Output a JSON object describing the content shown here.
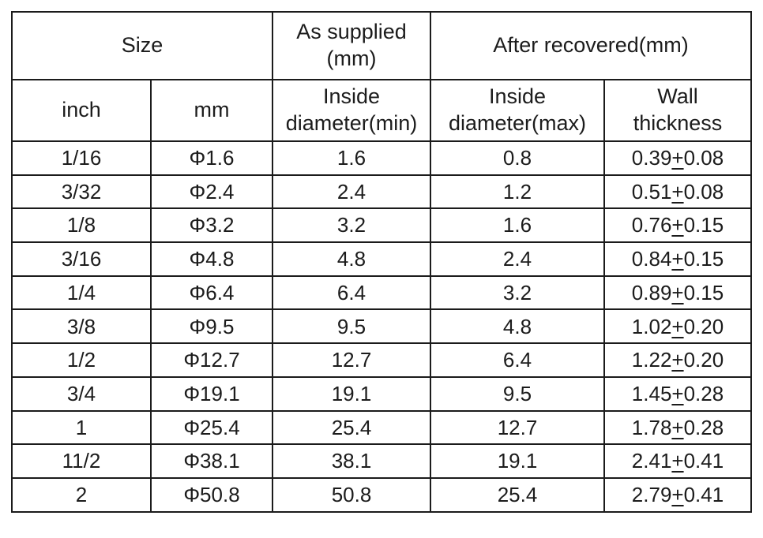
{
  "table": {
    "header_row1": {
      "size": "Size",
      "as_supplied": "As supplied\n(mm)",
      "after_recovered": "After recovered(mm)"
    },
    "header_row2": {
      "inch": "inch",
      "mm": "mm",
      "inside_diameter_min": "Inside\ndiameter(min)",
      "inside_diameter_max": "Inside\ndiameter(max)",
      "wall_thickness": "Wall\nthickness"
    },
    "tolerance_symbol": "+",
    "rows": [
      {
        "inch": "1/16",
        "mm": "Φ1.6",
        "inside_diameter_min": "1.6",
        "inside_diameter_max": "0.8",
        "wall_base": "0.39",
        "wall_tol": "0.08"
      },
      {
        "inch": "3/32",
        "mm": "Φ2.4",
        "inside_diameter_min": "2.4",
        "inside_diameter_max": "1.2",
        "wall_base": "0.51",
        "wall_tol": "0.08"
      },
      {
        "inch": "1/8",
        "mm": "Φ3.2",
        "inside_diameter_min": "3.2",
        "inside_diameter_max": "1.6",
        "wall_base": "0.76",
        "wall_tol": "0.15"
      },
      {
        "inch": "3/16",
        "mm": "Φ4.8",
        "inside_diameter_min": "4.8",
        "inside_diameter_max": "2.4",
        "wall_base": "0.84",
        "wall_tol": "0.15"
      },
      {
        "inch": "1/4",
        "mm": "Φ6.4",
        "inside_diameter_min": "6.4",
        "inside_diameter_max": "3.2",
        "wall_base": "0.89",
        "wall_tol": "0.15"
      },
      {
        "inch": "3/8",
        "mm": "Φ9.5",
        "inside_diameter_min": "9.5",
        "inside_diameter_max": "4.8",
        "wall_base": "1.02",
        "wall_tol": "0.20"
      },
      {
        "inch": "1/2",
        "mm": "Φ12.7",
        "inside_diameter_min": "12.7",
        "inside_diameter_max": "6.4",
        "wall_base": "1.22",
        "wall_tol": "0.20"
      },
      {
        "inch": "3/4",
        "mm": "Φ19.1",
        "inside_diameter_min": "19.1",
        "inside_diameter_max": "9.5",
        "wall_base": "1.45",
        "wall_tol": "0.28"
      },
      {
        "inch": "1",
        "mm": "Φ25.4",
        "inside_diameter_min": "25.4",
        "inside_diameter_max": "12.7",
        "wall_base": "1.78",
        "wall_tol": "0.28"
      },
      {
        "inch": "11/2",
        "mm": "Φ38.1",
        "inside_diameter_min": "38.1",
        "inside_diameter_max": "19.1",
        "wall_base": "2.41",
        "wall_tol": "0.41"
      },
      {
        "inch": "2",
        "mm": "Φ50.8",
        "inside_diameter_min": "50.8",
        "inside_diameter_max": "25.4",
        "wall_base": "2.79",
        "wall_tol": "0.41"
      }
    ]
  },
  "colors": {
    "border": "#1b1b1b",
    "text": "#1c1c1c",
    "background": "#ffffff"
  }
}
